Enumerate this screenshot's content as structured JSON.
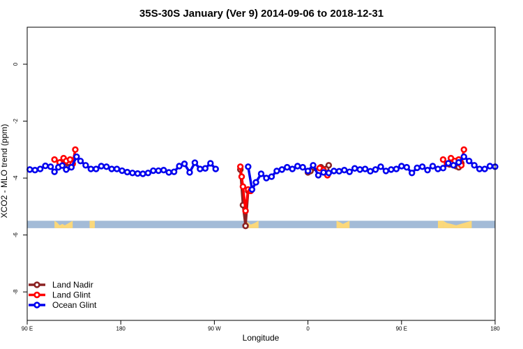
{
  "chart_data": {
    "type": "line",
    "title": "35S-30S January (Ver 9)   2014-09-06 to 2018-12-31",
    "xlabel": "Longitude",
    "ylabel": "XCO2 - MLO trend (ppm)",
    "xlim": [
      90,
      450
    ],
    "ylim": [
      -9,
      1.3
    ],
    "xticks": [
      {
        "value": 90,
        "label": "90 E"
      },
      {
        "value": 162,
        "label": "180"
      },
      {
        "value": 234,
        "label": "90 W"
      },
      {
        "value": 306,
        "label": "0"
      },
      {
        "value": 378,
        "label": "90 E"
      },
      {
        "value": 450,
        "label": "180"
      }
    ],
    "yticks": [
      {
        "value": 0,
        "label": "0"
      },
      {
        "value": -2,
        "label": "-2"
      },
      {
        "value": -4,
        "label": "-4"
      },
      {
        "value": -6,
        "label": "-6"
      },
      {
        "value": -8,
        "label": "-8"
      }
    ],
    "legend_position": "bottom-left",
    "band": {
      "y_top": -5.5,
      "y_bottom": -5.76,
      "ocean_color": "#a3bbd7",
      "land_color": "#fbd87a"
    },
    "land_segments": [
      [
        [
          111,
          -5.5
        ],
        [
          111,
          -5.76
        ],
        [
          125,
          -5.76
        ],
        [
          125,
          -5.5
        ],
        [
          122,
          -5.58
        ],
        [
          119,
          -5.66
        ],
        [
          117,
          -5.61
        ],
        [
          115,
          -5.66
        ],
        [
          113,
          -5.56
        ]
      ],
      [
        [
          138,
          -5.5
        ],
        [
          138,
          -5.76
        ],
        [
          142,
          -5.76
        ],
        [
          142,
          -5.5
        ]
      ],
      [
        [
          258,
          -5.5
        ],
        [
          258,
          -5.76
        ],
        [
          268,
          -5.76
        ],
        [
          268,
          -5.5
        ],
        [
          265,
          -5.58
        ],
        [
          262,
          -5.63
        ],
        [
          260,
          -5.56
        ]
      ],
      [
        [
          328,
          -5.5
        ],
        [
          328,
          -5.76
        ],
        [
          338,
          -5.76
        ],
        [
          338,
          -5.5
        ],
        [
          333,
          -5.61
        ],
        [
          331,
          -5.56
        ]
      ],
      [
        [
          406,
          -5.5
        ],
        [
          406,
          -5.76
        ],
        [
          410,
          -5.76
        ],
        [
          410,
          -5.5
        ]
      ],
      [
        [
          410,
          -5.5
        ],
        [
          410,
          -5.76
        ],
        [
          432,
          -5.76
        ],
        [
          432,
          -5.5
        ],
        [
          426,
          -5.58
        ],
        [
          420,
          -5.66
        ],
        [
          416,
          -5.61
        ],
        [
          413,
          -5.58
        ]
      ]
    ],
    "series": [
      {
        "name": "Land Nadir",
        "color": "#8b2323",
        "segments": [
          [
            [
              115,
              -3.47
            ],
            [
              117,
              -3.42
            ],
            [
              119,
              -3.45
            ],
            [
              122,
              -3.62
            ],
            [
              124,
              -3.6
            ]
          ],
          [
            [
              254,
              -3.7
            ],
            [
              256,
              -4.95
            ],
            [
              258,
              -5.68
            ],
            [
              260,
              -4.45
            ]
          ],
          [
            [
              306,
              -3.8
            ],
            [
              308,
              -3.75
            ],
            [
              316,
              -3.62
            ],
            [
              320,
              -3.68
            ],
            [
              322,
              -3.55
            ]
          ],
          [
            [
              415,
              -3.52
            ],
            [
              417,
              -3.48
            ],
            [
              420,
              -3.58
            ],
            [
              422,
              -3.62
            ],
            [
              424,
              -3.48
            ]
          ]
        ]
      },
      {
        "name": "Land Glint",
        "color": "#ff0000",
        "segments": [
          [
            [
              111,
              -3.35
            ],
            [
              115,
              -3.45
            ],
            [
              118,
              -3.3
            ],
            [
              120,
              -3.4
            ],
            [
              123,
              -3.35
            ],
            [
              125,
              -3.5
            ],
            [
              127,
              -3.0
            ]
          ],
          [
            [
              254,
              -3.6
            ],
            [
              255,
              -3.95
            ],
            [
              256,
              -4.3
            ],
            [
              258,
              -5.15
            ],
            [
              260,
              -4.4
            ],
            [
              262,
              -4.45
            ]
          ],
          [
            [
              315,
              -3.65
            ],
            [
              318,
              -3.72
            ],
            [
              321,
              -3.9
            ]
          ],
          [
            [
              410,
              -3.35
            ],
            [
              413,
              -3.5
            ],
            [
              416,
              -3.3
            ],
            [
              419,
              -3.4
            ],
            [
              422,
              -3.35
            ],
            [
              424,
              -3.55
            ],
            [
              426,
              -3.0
            ]
          ]
        ]
      },
      {
        "name": "Ocean Glint",
        "color": "#0000ee",
        "segments": [
          [
            [
              92,
              -3.7
            ],
            [
              96,
              -3.72
            ],
            [
              100,
              -3.68
            ],
            [
              104,
              -3.57
            ],
            [
              108,
              -3.6
            ],
            [
              111,
              -3.78
            ],
            [
              114,
              -3.62
            ],
            [
              117,
              -3.56
            ],
            [
              120,
              -3.7
            ],
            [
              124,
              -3.62
            ],
            [
              128,
              -3.25
            ],
            [
              131,
              -3.4
            ],
            [
              135,
              -3.55
            ],
            [
              139,
              -3.68
            ],
            [
              143,
              -3.68
            ],
            [
              147,
              -3.58
            ],
            [
              151,
              -3.6
            ],
            [
              155,
              -3.68
            ],
            [
              159,
              -3.68
            ],
            [
              163,
              -3.74
            ],
            [
              167,
              -3.79
            ],
            [
              171,
              -3.82
            ],
            [
              175,
              -3.84
            ],
            [
              179,
              -3.85
            ],
            [
              183,
              -3.82
            ],
            [
              187,
              -3.74
            ],
            [
              191,
              -3.74
            ],
            [
              195,
              -3.72
            ],
            [
              199,
              -3.8
            ],
            [
              203,
              -3.78
            ],
            [
              207,
              -3.58
            ],
            [
              211,
              -3.5
            ],
            [
              215,
              -3.8
            ],
            [
              219,
              -3.46
            ],
            [
              223,
              -3.68
            ],
            [
              227,
              -3.66
            ],
            [
              231,
              -3.48
            ],
            [
              235,
              -3.68
            ]
          ],
          [
            [
              260,
              -3.6
            ],
            [
              263,
              -4.4
            ],
            [
              266,
              -4.15
            ],
            [
              270,
              -3.85
            ],
            [
              274,
              -4.0
            ],
            [
              278,
              -3.95
            ],
            [
              282,
              -3.75
            ],
            [
              286,
              -3.7
            ],
            [
              290,
              -3.62
            ],
            [
              294,
              -3.68
            ],
            [
              298,
              -3.58
            ],
            [
              302,
              -3.62
            ],
            [
              306,
              -3.75
            ],
            [
              310,
              -3.55
            ],
            [
              314,
              -3.9
            ],
            [
              318,
              -3.8
            ],
            [
              322,
              -3.82
            ],
            [
              326,
              -3.75
            ],
            [
              330,
              -3.76
            ],
            [
              334,
              -3.72
            ],
            [
              338,
              -3.78
            ],
            [
              342,
              -3.66
            ],
            [
              346,
              -3.7
            ],
            [
              350,
              -3.68
            ],
            [
              354,
              -3.76
            ],
            [
              358,
              -3.7
            ],
            [
              362,
              -3.6
            ],
            [
              366,
              -3.75
            ],
            [
              370,
              -3.7
            ],
            [
              374,
              -3.68
            ],
            [
              378,
              -3.58
            ],
            [
              382,
              -3.62
            ],
            [
              386,
              -3.82
            ],
            [
              390,
              -3.64
            ],
            [
              394,
              -3.6
            ],
            [
              398,
              -3.72
            ],
            [
              402,
              -3.58
            ],
            [
              406,
              -3.68
            ],
            [
              410,
              -3.65
            ],
            [
              414,
              -3.48
            ],
            [
              418,
              -3.55
            ],
            [
              422,
              -3.45
            ],
            [
              426,
              -3.25
            ],
            [
              430,
              -3.4
            ],
            [
              434,
              -3.55
            ],
            [
              438,
              -3.68
            ],
            [
              442,
              -3.68
            ],
            [
              446,
              -3.58
            ],
            [
              450,
              -3.6
            ]
          ]
        ]
      }
    ]
  }
}
